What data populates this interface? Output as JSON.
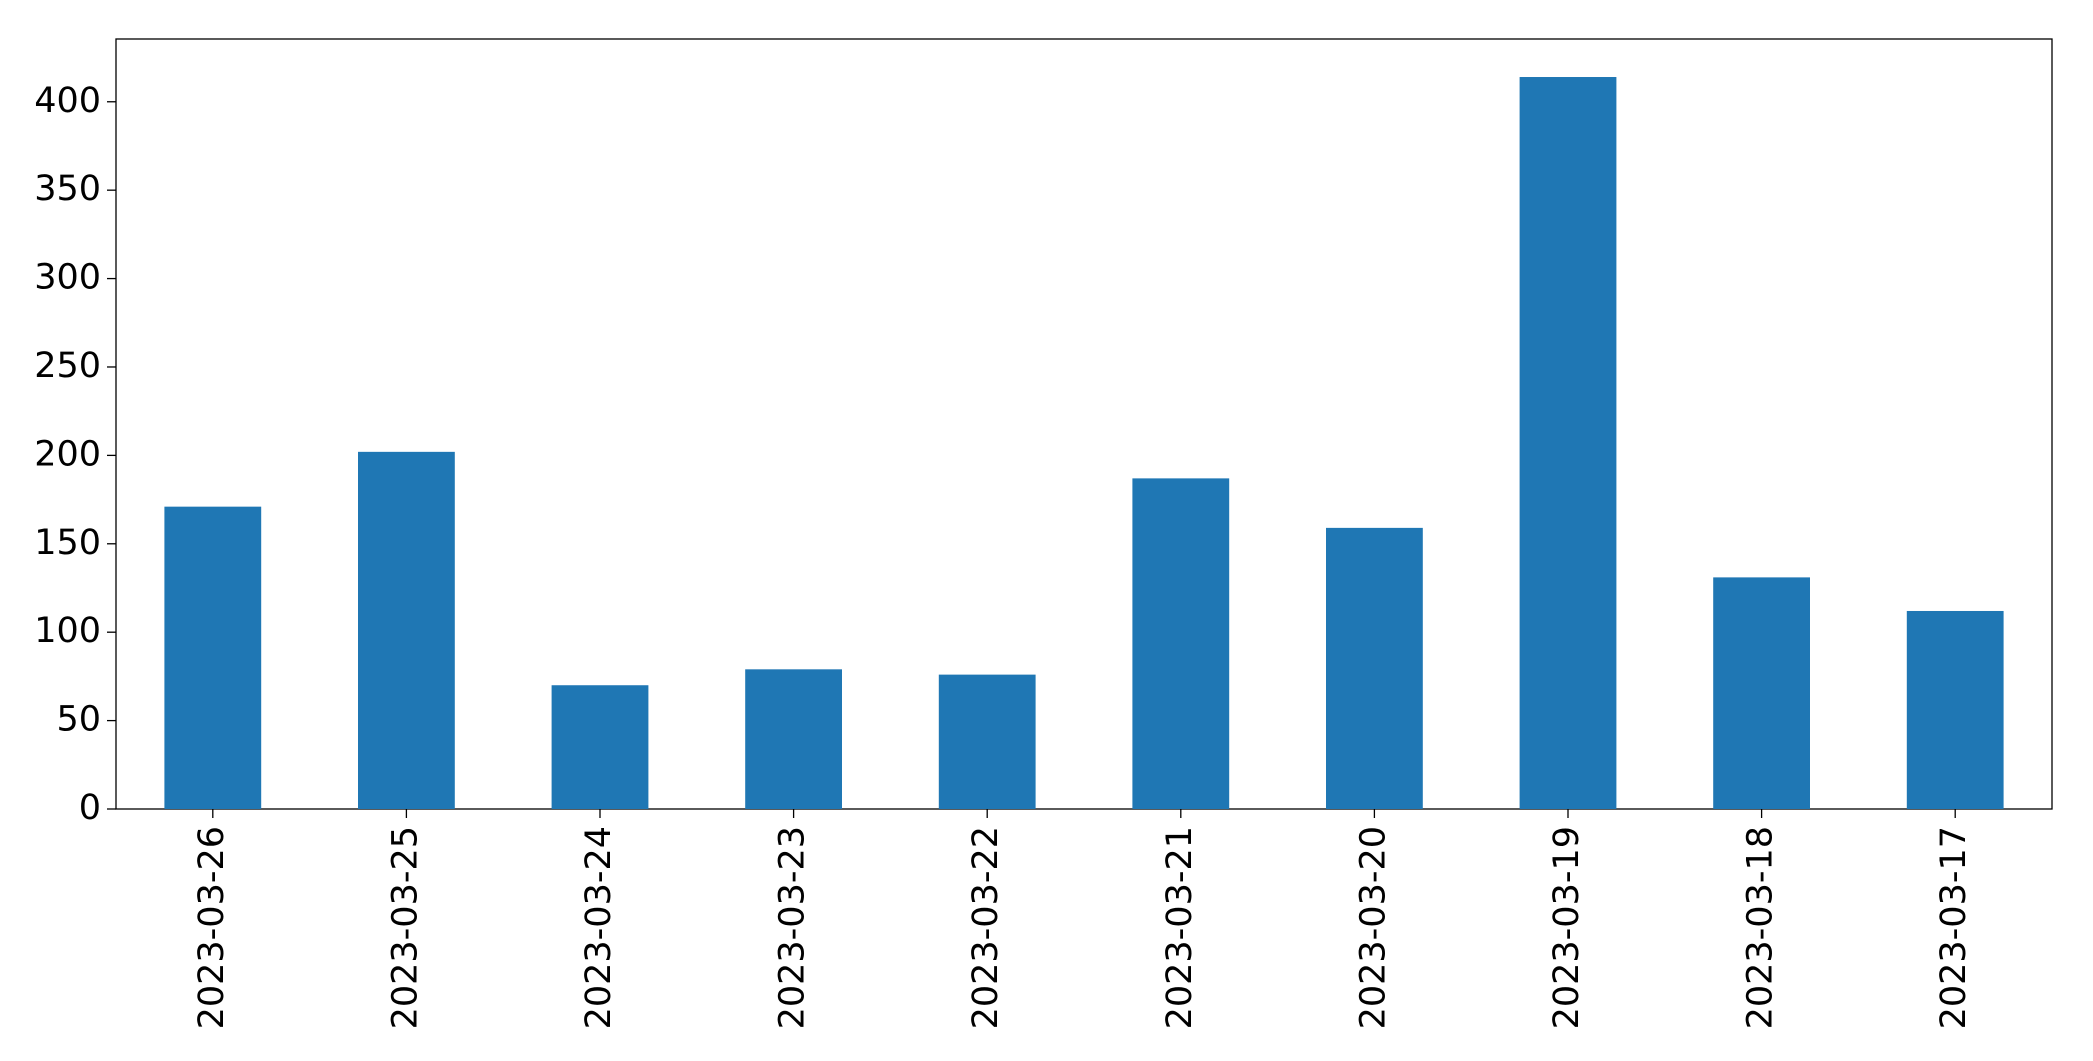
{
  "chart_data": {
    "type": "bar",
    "categories": [
      "2023-03-26",
      "2023-03-25",
      "2023-03-24",
      "2023-03-23",
      "2023-03-22",
      "2023-03-21",
      "2023-03-20",
      "2023-03-19",
      "2023-03-18",
      "2023-03-17"
    ],
    "values": [
      171,
      202,
      70,
      79,
      76,
      187,
      159,
      414,
      131,
      112
    ],
    "color": "#1f77b4",
    "ylim": [
      0,
      435.5
    ],
    "yticks": [
      0,
      50,
      100,
      150,
      200,
      250,
      300,
      350,
      400
    ],
    "grid": false
  }
}
